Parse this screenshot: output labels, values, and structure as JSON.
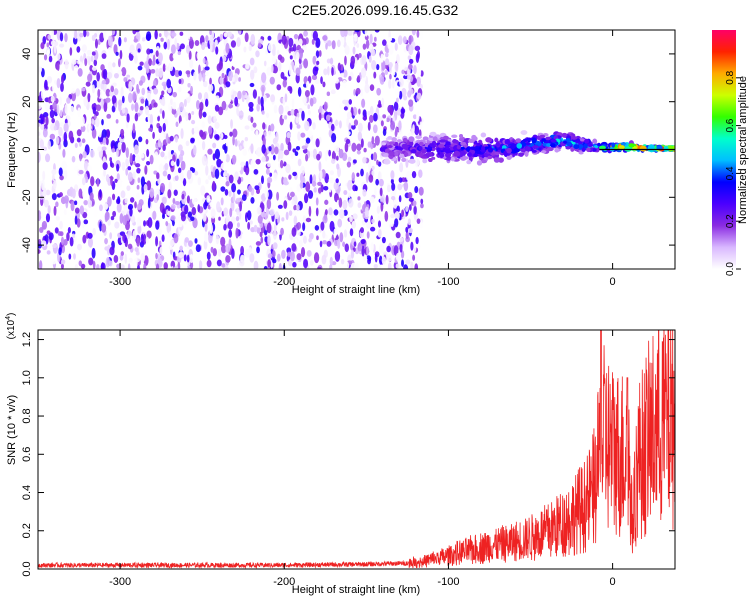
{
  "title": "C2E5.2026.099.16.45.G32",
  "chart_data": [
    {
      "type": "heatmap",
      "name": "spectrogram",
      "xlabel": "Height of straight line (km)",
      "ylabel": "Frequency (Hz)",
      "xlim": [
        -350,
        38
      ],
      "ylim": [
        -50,
        50
      ],
      "xticks": [
        -300,
        -200,
        -100,
        0
      ],
      "xtick_labels": [
        "-300",
        "-200",
        "-100",
        "0"
      ],
      "yticks": [
        -40,
        -20,
        0,
        20,
        40
      ],
      "ytick_labels": [
        "-40",
        "-20",
        "0",
        "20",
        "40"
      ],
      "colorbar": {
        "label": "Normalized spectral amplitude",
        "range": [
          0,
          1
        ],
        "ticks": [
          0.0,
          0.2,
          0.4,
          0.6,
          0.8
        ],
        "tick_labels": [
          "0.0",
          "0.2",
          "0.4",
          "0.6",
          "0.8"
        ],
        "colors": [
          "#ffffff",
          "#d9b8ff",
          "#8a2be2",
          "#4b00ff",
          "#0000ff",
          "#00bfff",
          "#00ffcc",
          "#33ff00",
          "#ccff00",
          "#ffaa00",
          "#ff2200",
          "#ff0066"
        ]
      },
      "noise_region_x": [
        -350,
        -122
      ],
      "signal_band": {
        "x": [
          -140,
          -120,
          -100,
          -80,
          -60,
          -40,
          -30,
          -20,
          -10,
          0,
          10,
          20,
          38
        ],
        "center_hz": [
          0,
          0,
          0,
          0,
          1,
          3,
          4,
          2,
          1,
          1,
          1,
          0.5,
          0.5
        ],
        "spread_hz": [
          6,
          7,
          8,
          7,
          6,
          5,
          5,
          4,
          3,
          2,
          2,
          1,
          1
        ],
        "peak_amplitude": [
          0.25,
          0.3,
          0.35,
          0.4,
          0.45,
          0.5,
          0.55,
          0.5,
          0.55,
          0.8,
          0.9,
          0.95,
          1.0
        ]
      }
    },
    {
      "type": "line",
      "name": "snr",
      "xlabel": "Height of straight line (km)",
      "ylabel": "SNR (10 * v/v)",
      "y_multiplier": "(x10",
      "y_multiplier_exp": "4",
      "y_multiplier_close": ")",
      "xlim": [
        -350,
        38
      ],
      "ylim": [
        0,
        1.25
      ],
      "xticks": [
        -300,
        -200,
        -100,
        0
      ],
      "xtick_labels": [
        "-300",
        "-200",
        "-100",
        "0"
      ],
      "yticks": [
        0.0,
        0.2,
        0.4,
        0.6,
        0.8,
        1.0,
        1.2
      ],
      "ytick_labels": [
        "0.0",
        "0.2",
        "0.4",
        "0.6",
        "0.8",
        "1.0",
        "1.2"
      ],
      "color": "#ee2222",
      "series": {
        "x": [
          -350,
          -300,
          -250,
          -200,
          -150,
          -125,
          -115,
          -105,
          -95,
          -85,
          -75,
          -65,
          -55,
          -45,
          -35,
          -25,
          -15,
          -10,
          -8,
          -5,
          0,
          5,
          8,
          10,
          12,
          15,
          20,
          25,
          30,
          38
        ],
        "y": [
          0.02,
          0.02,
          0.02,
          0.02,
          0.025,
          0.03,
          0.04,
          0.06,
          0.08,
          0.1,
          0.12,
          0.13,
          0.15,
          0.18,
          0.22,
          0.27,
          0.35,
          0.45,
          0.6,
          0.68,
          0.62,
          0.6,
          0.62,
          0.55,
          0.22,
          0.55,
          0.65,
          0.72,
          0.78,
          0.82
        ]
      },
      "spikes": [
        {
          "x": -7,
          "y": 1.25
        },
        {
          "x": 9,
          "y": 1.0
        }
      ]
    }
  ]
}
